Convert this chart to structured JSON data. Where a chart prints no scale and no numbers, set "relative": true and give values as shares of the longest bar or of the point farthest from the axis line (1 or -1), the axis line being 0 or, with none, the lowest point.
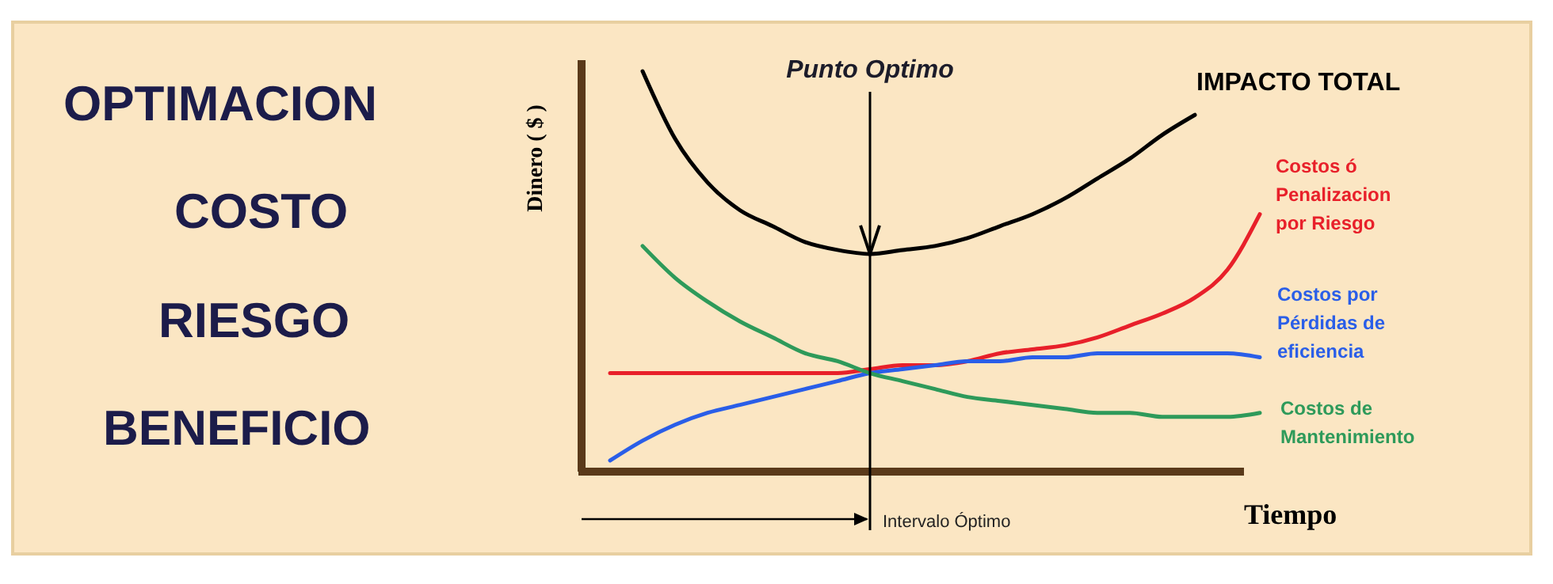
{
  "chart_data": {
    "type": "line",
    "relative": true,
    "title": "OPTIMACION\nCOSTO\nRIESGO\nBENEFICIO",
    "ylabel": "Dinero ( $ )",
    "xlabel": "Tiempo",
    "annotations": [
      "Punto Optimo",
      "Intervalo Óptimo"
    ],
    "marker": "none",
    "line_style": "solid",
    "categories": [
      null,
      null,
      null,
      null,
      null,
      null,
      null,
      null,
      null,
      null,
      null,
      null,
      null,
      null,
      null,
      null,
      null,
      null,
      null,
      null,
      null
    ],
    "series": [
      {
        "name": "IMPACTO TOTAL",
        "color": "#000000",
        "values": [
          null,
          1,
          0.83,
          0.72,
          0.65,
          0.61,
          0.57,
          0.55,
          0.54,
          0.55,
          0.56,
          0.58,
          0.61,
          0.64,
          0.68,
          0.73,
          0.78,
          0.84,
          0.89,
          null,
          null
        ]
      },
      {
        "name": "Costos ó Penalizacion por Riesgo",
        "color": "#e8202a",
        "values": [
          0.24,
          0.24,
          0.24,
          0.24,
          0.24,
          0.24,
          0.24,
          0.24,
          0.25,
          0.26,
          0.26,
          0.27,
          0.29,
          0.3,
          0.31,
          0.33,
          0.36,
          0.39,
          0.43,
          0.5,
          0.64
        ]
      },
      {
        "name": "Costos por Pérdidas de eficiencia",
        "color": "#2a5ee8",
        "values": [
          0.02,
          0.07,
          0.11,
          0.14,
          0.16,
          0.18,
          0.2,
          0.22,
          0.24,
          0.25,
          0.26,
          0.27,
          0.27,
          0.28,
          0.28,
          0.29,
          0.29,
          0.29,
          0.29,
          0.29,
          0.28
        ]
      },
      {
        "name": "Costos de Mantenimiento",
        "color": "#2e9a5a",
        "values": [
          null,
          0.56,
          0.48,
          0.42,
          0.37,
          0.33,
          0.29,
          0.27,
          0.24,
          0.22,
          0.2,
          0.18,
          0.17,
          0.16,
          0.15,
          0.14,
          0.14,
          0.13,
          0.13,
          0.13,
          0.14
        ]
      }
    ]
  }
}
